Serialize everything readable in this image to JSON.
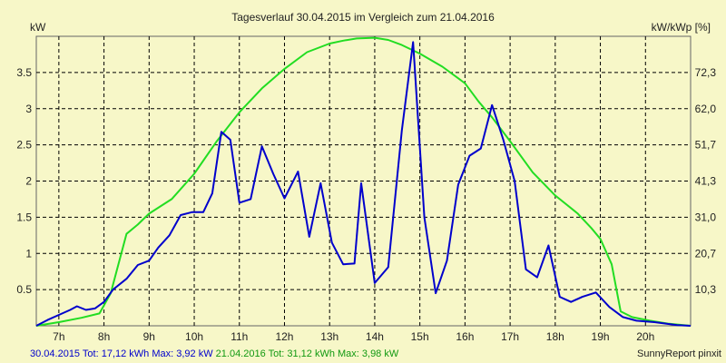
{
  "chart_data": {
    "type": "line",
    "title": "Tagesverlauf 30.04.2015 im Vergleich zum 21.04.2016",
    "y_left_unit": "kW",
    "y_right_unit": "kW/kWp [%]",
    "xlim": [
      6.5,
      21.0
    ],
    "ylim": [
      0,
      4.0
    ],
    "grid": true,
    "x_ticks": [
      {
        "x": 7,
        "label": "7h"
      },
      {
        "x": 8,
        "label": "8h"
      },
      {
        "x": 9,
        "label": "9h"
      },
      {
        "x": 10,
        "label": "10h"
      },
      {
        "x": 11,
        "label": "11h"
      },
      {
        "x": 12,
        "label": "12h"
      },
      {
        "x": 13,
        "label": "13h"
      },
      {
        "x": 14,
        "label": "14h"
      },
      {
        "x": 15,
        "label": "15h"
      },
      {
        "x": 16,
        "label": "16h"
      },
      {
        "x": 17,
        "label": "17h"
      },
      {
        "x": 18,
        "label": "18h"
      },
      {
        "x": 19,
        "label": "19h"
      },
      {
        "x": 20,
        "label": "20h"
      }
    ],
    "y_ticks_left": [
      {
        "y": 0.5,
        "label": "0.5"
      },
      {
        "y": 1.0,
        "label": "1"
      },
      {
        "y": 1.5,
        "label": "1.5"
      },
      {
        "y": 2.0,
        "label": "2"
      },
      {
        "y": 2.5,
        "label": "2.5"
      },
      {
        "y": 3.0,
        "label": "3"
      },
      {
        "y": 3.5,
        "label": "3.5"
      }
    ],
    "y_ticks_right": [
      {
        "y": 0.5,
        "label": "10,3"
      },
      {
        "y": 1.0,
        "label": "20,7"
      },
      {
        "y": 1.5,
        "label": "31,0"
      },
      {
        "y": 2.0,
        "label": "41,3"
      },
      {
        "y": 2.5,
        "label": "51,7"
      },
      {
        "y": 3.0,
        "label": "62,0"
      },
      {
        "y": 3.5,
        "label": "72,3"
      }
    ],
    "series": [
      {
        "name": "30.04.2015",
        "color": "#0000cc",
        "points": [
          [
            6.5,
            0.0
          ],
          [
            6.75,
            0.08
          ],
          [
            7.0,
            0.15
          ],
          [
            7.25,
            0.22
          ],
          [
            7.4,
            0.27
          ],
          [
            7.6,
            0.22
          ],
          [
            7.8,
            0.24
          ],
          [
            8.0,
            0.33
          ],
          [
            8.2,
            0.5
          ],
          [
            8.5,
            0.65
          ],
          [
            8.75,
            0.84
          ],
          [
            9.0,
            0.9
          ],
          [
            9.2,
            1.08
          ],
          [
            9.45,
            1.25
          ],
          [
            9.7,
            1.53
          ],
          [
            9.95,
            1.57
          ],
          [
            10.2,
            1.57
          ],
          [
            10.4,
            1.83
          ],
          [
            10.6,
            2.68
          ],
          [
            10.8,
            2.57
          ],
          [
            11.0,
            1.7
          ],
          [
            11.25,
            1.75
          ],
          [
            11.5,
            2.48
          ],
          [
            11.75,
            2.1
          ],
          [
            12.0,
            1.76
          ],
          [
            12.3,
            2.13
          ],
          [
            12.55,
            1.23
          ],
          [
            12.8,
            1.97
          ],
          [
            13.05,
            1.15
          ],
          [
            13.3,
            0.85
          ],
          [
            13.55,
            0.86
          ],
          [
            13.7,
            1.97
          ],
          [
            14.0,
            0.59
          ],
          [
            14.3,
            0.81
          ],
          [
            14.6,
            2.7
          ],
          [
            14.85,
            3.92
          ],
          [
            15.1,
            1.5
          ],
          [
            15.35,
            0.45
          ],
          [
            15.6,
            0.9
          ],
          [
            15.85,
            1.95
          ],
          [
            16.1,
            2.35
          ],
          [
            16.35,
            2.45
          ],
          [
            16.6,
            3.05
          ],
          [
            16.85,
            2.57
          ],
          [
            17.1,
            2.0
          ],
          [
            17.35,
            0.78
          ],
          [
            17.6,
            0.67
          ],
          [
            17.85,
            1.11
          ],
          [
            18.1,
            0.4
          ],
          [
            18.35,
            0.33
          ],
          [
            18.6,
            0.4
          ],
          [
            18.9,
            0.46
          ],
          [
            19.2,
            0.26
          ],
          [
            19.5,
            0.12
          ],
          [
            19.8,
            0.07
          ],
          [
            20.2,
            0.05
          ],
          [
            20.7,
            0.01
          ],
          [
            21.0,
            0.0
          ]
        ]
      },
      {
        "name": "21.04.2016",
        "color": "#22dd22",
        "points": [
          [
            6.5,
            0.0
          ],
          [
            7.0,
            0.05
          ],
          [
            7.5,
            0.11
          ],
          [
            7.9,
            0.17
          ],
          [
            8.15,
            0.45
          ],
          [
            8.5,
            1.27
          ],
          [
            8.75,
            1.4
          ],
          [
            9.0,
            1.55
          ],
          [
            9.5,
            1.75
          ],
          [
            10.0,
            2.1
          ],
          [
            10.5,
            2.55
          ],
          [
            11.0,
            2.95
          ],
          [
            11.5,
            3.28
          ],
          [
            12.0,
            3.55
          ],
          [
            12.5,
            3.78
          ],
          [
            13.0,
            3.9
          ],
          [
            13.3,
            3.94
          ],
          [
            13.6,
            3.97
          ],
          [
            14.0,
            3.98
          ],
          [
            14.3,
            3.95
          ],
          [
            14.6,
            3.88
          ],
          [
            15.0,
            3.76
          ],
          [
            15.5,
            3.58
          ],
          [
            16.0,
            3.35
          ],
          [
            16.3,
            3.1
          ],
          [
            16.6,
            2.88
          ],
          [
            17.0,
            2.55
          ],
          [
            17.5,
            2.12
          ],
          [
            18.0,
            1.8
          ],
          [
            18.5,
            1.55
          ],
          [
            18.8,
            1.35
          ],
          [
            19.0,
            1.2
          ],
          [
            19.25,
            0.85
          ],
          [
            19.45,
            0.2
          ],
          [
            19.7,
            0.12
          ],
          [
            20.1,
            0.07
          ],
          [
            20.5,
            0.03
          ],
          [
            21.0,
            0.0
          ]
        ]
      }
    ],
    "footer": {
      "s1_date": "30.04.2015",
      "s1_stats": " Tot: 17,12 kWh Max: 3,92 kW ",
      "s2_date": "21.04.2016",
      "s2_stats": " Tot: 31,12 kWh Max: 3,98 kW",
      "credit": "SunnyReport pinxit"
    }
  }
}
